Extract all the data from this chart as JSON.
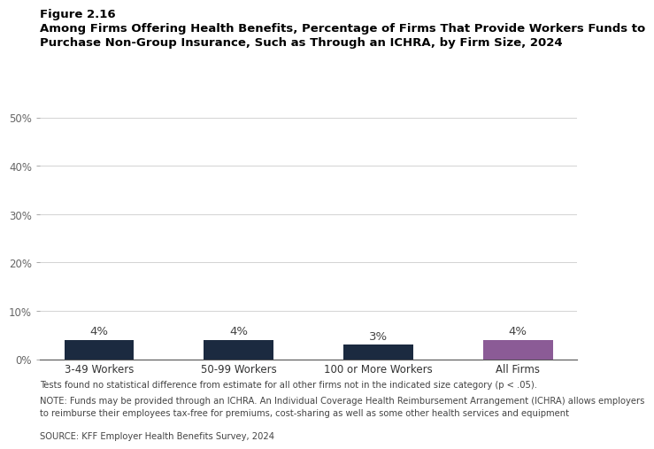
{
  "title_line1": "Figure 2.16",
  "title_line2": "Among Firms Offering Health Benefits, Percentage of Firms That Provide Workers Funds to\nPurchase Non-Group Insurance, Such as Through an ICHRA, by Firm Size, 2024",
  "categories": [
    "3-49 Workers",
    "50-99 Workers",
    "100 or More Workers",
    "All Firms"
  ],
  "values": [
    4,
    4,
    3,
    4
  ],
  "bar_colors": [
    "#1b2a40",
    "#1b2a40",
    "#1b2a40",
    "#8b5b96"
  ],
  "ylim": [
    0,
    50
  ],
  "yticks": [
    0,
    10,
    20,
    30,
    40,
    50
  ],
  "ytick_labels": [
    "0%",
    "10%",
    "20%",
    "30%",
    "40%",
    "50%"
  ],
  "value_labels": [
    "4%",
    "4%",
    "3%",
    "4%"
  ],
  "footnote1": "Tests found no statistical difference from estimate for all other firms not in the indicated size category (p < .05).",
  "footnote2": "NOTE: Funds may be provided through an ICHRA. An Individual Coverage Health Reimbursement Arrangement (ICHRA) allows employers to reimburse their employees tax-free for premiums, cost-sharing as well as some other health services and equipment",
  "footnote3": "SOURCE: KFF Employer Health Benefits Survey, 2024",
  "background_color": "#ffffff",
  "bar_width": 0.5,
  "label_fontsize": 9.5,
  "tick_fontsize": 8.5,
  "title1_fontsize": 9.5,
  "title2_fontsize": 9.5,
  "footnote_fontsize": 7.2
}
